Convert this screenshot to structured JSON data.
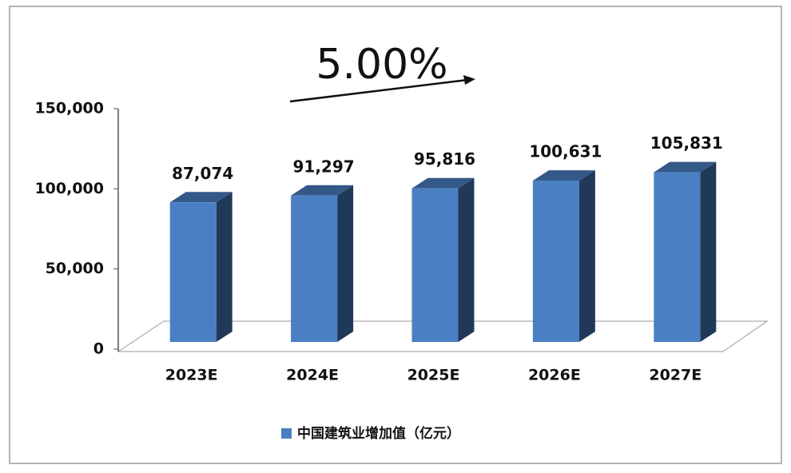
{
  "chart_data": {
    "type": "bar3d",
    "annotation": "5.00%",
    "categories": [
      "2023E",
      "2024E",
      "2025E",
      "2026E",
      "2027E"
    ],
    "series": [
      {
        "name": "中国建筑业增加值（亿元）",
        "color": "#4a7fc4",
        "values": [
          87074,
          91297,
          95816,
          100631,
          105831
        ],
        "value_labels": [
          "87,074",
          "91,297",
          "95,816",
          "100,631",
          "105,831"
        ]
      }
    ],
    "ylim": [
      0,
      150000
    ],
    "yticks": [
      0,
      {
        "value": 50000,
        "label": "50,000"
      },
      {
        "value": 100000,
        "label": "100,000"
      },
      {
        "value": 150000,
        "label": "150,000"
      }
    ],
    "legend": "bottom"
  }
}
